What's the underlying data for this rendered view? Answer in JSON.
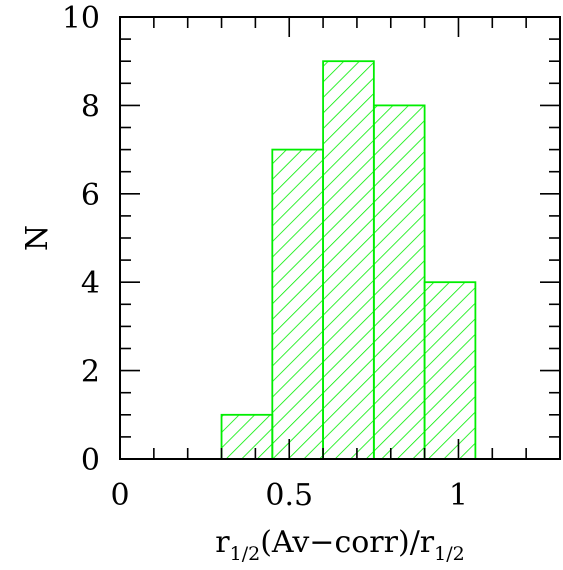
{
  "chart_data": {
    "type": "bar",
    "subtype": "histogram",
    "bins": [
      {
        "x0": 0.3,
        "x1": 0.45,
        "count": 1
      },
      {
        "x0": 0.45,
        "x1": 0.6,
        "count": 7
      },
      {
        "x0": 0.6,
        "x1": 0.75,
        "count": 9
      },
      {
        "x0": 0.75,
        "x1": 0.9,
        "count": 8
      },
      {
        "x0": 0.9,
        "x1": 1.05,
        "count": 4
      }
    ],
    "xlim": [
      0,
      1.3
    ],
    "ylim": [
      0,
      10
    ],
    "x_major_ticks": [
      0,
      0.5,
      1
    ],
    "x_tick_labels": [
      "0",
      "0.5",
      "1"
    ],
    "x_minor_step": 0.1,
    "y_major_ticks": [
      0,
      2,
      4,
      6,
      8,
      10
    ],
    "y_tick_labels": [
      "0",
      "2",
      "4",
      "6",
      "8",
      "10"
    ],
    "y_minor_step": 0.5,
    "xlabel": {
      "r1": "r",
      "sub1": "1/2",
      "mid": "(Av−corr)/r",
      "sub2": "1/2"
    },
    "ylabel": "N",
    "fill": "hatched",
    "color": "#00ee00",
    "grid": false
  }
}
